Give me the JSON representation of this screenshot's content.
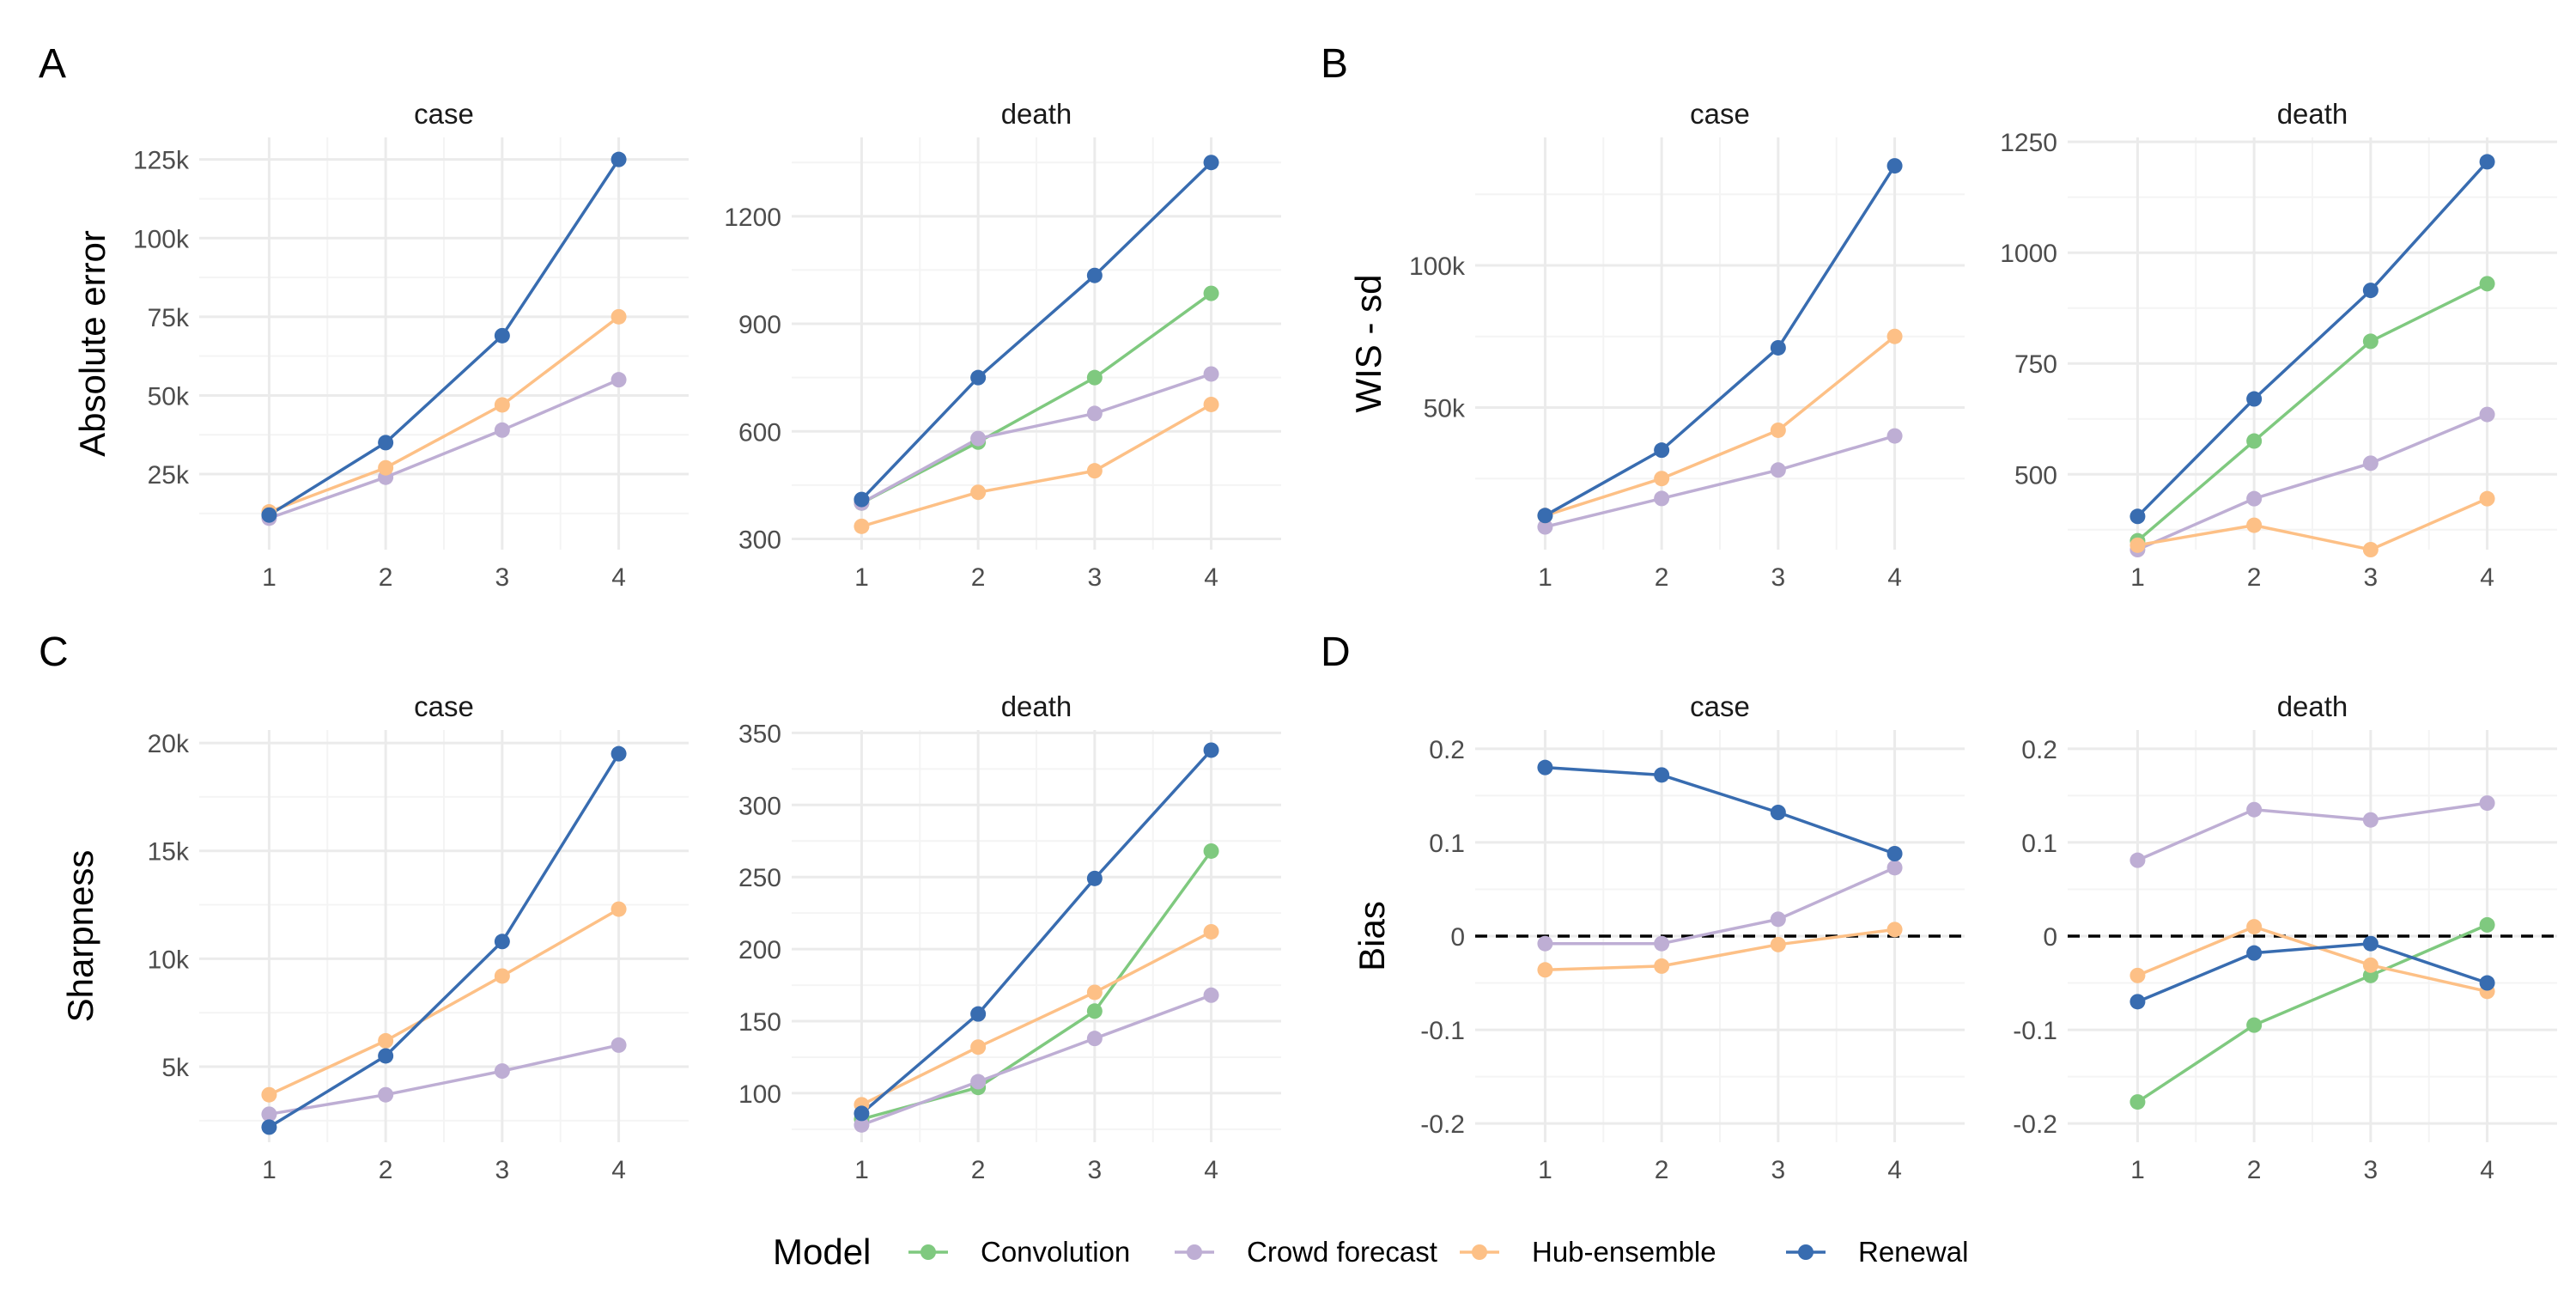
{
  "colors": {
    "Convolution": "#7fc97f",
    "Crowd forecast": "#beaed4",
    "Hub-ensemble": "#fdc086",
    "Renewal": "#386cb0",
    "grid_major": "#ebebeb",
    "grid_minor": "#f4f4f4",
    "zero_line": "#000000"
  },
  "legend": {
    "title": "Model",
    "items": [
      "Convolution",
      "Crowd forecast",
      "Hub-ensemble",
      "Renewal"
    ]
  },
  "panels": [
    {
      "label": "A",
      "ylabel": "Absolute error"
    },
    {
      "label": "B",
      "ylabel": "WIS - sd"
    },
    {
      "label": "C",
      "ylabel": "Sharpness"
    },
    {
      "label": "D",
      "ylabel": "Bias"
    }
  ],
  "chart_data": [
    {
      "type": "line",
      "panel": "A",
      "facet": "case",
      "ylabel": "Absolute error",
      "x": [
        1,
        2,
        3,
        4
      ],
      "xlim": [
        0.4,
        4.6
      ],
      "ylim": [
        1000,
        132000
      ],
      "yticks": [
        25000,
        50000,
        75000,
        100000,
        125000
      ],
      "yticklabels": [
        "25k",
        "50k",
        "75k",
        "100k",
        "125k"
      ],
      "xticklabels": [
        "1",
        "2",
        "3",
        "4"
      ],
      "series": [
        {
          "name": "Crowd forecast",
          "values": [
            11000,
            24000,
            39000,
            55000
          ]
        },
        {
          "name": "Hub-ensemble",
          "values": [
            13000,
            27000,
            47000,
            75000
          ]
        },
        {
          "name": "Renewal",
          "values": [
            12000,
            35000,
            69000,
            125000
          ]
        }
      ]
    },
    {
      "type": "line",
      "panel": "A",
      "facet": "death",
      "ylabel": "",
      "x": [
        1,
        2,
        3,
        4
      ],
      "xlim": [
        0.4,
        4.6
      ],
      "ylim": [
        270,
        1420
      ],
      "yticks": [
        300,
        600,
        900,
        1200
      ],
      "yticklabels": [
        "300",
        "600",
        "900",
        "1200"
      ],
      "xticklabels": [
        "1",
        "2",
        "3",
        "4"
      ],
      "series": [
        {
          "name": "Convolution",
          "values": [
            400,
            570,
            750,
            985
          ]
        },
        {
          "name": "Crowd forecast",
          "values": [
            400,
            580,
            650,
            760
          ]
        },
        {
          "name": "Hub-ensemble",
          "values": [
            335,
            430,
            490,
            675
          ]
        },
        {
          "name": "Renewal",
          "values": [
            410,
            750,
            1035,
            1350
          ]
        }
      ]
    },
    {
      "type": "line",
      "panel": "B",
      "facet": "case",
      "ylabel": "WIS - sd",
      "x": [
        1,
        2,
        3,
        4
      ],
      "xlim": [
        0.4,
        4.6
      ],
      "ylim": [
        0,
        145000
      ],
      "yticks": [
        50000,
        100000
      ],
      "yticklabels": [
        "50k",
        "100k"
      ],
      "xticklabels": [
        "1",
        "2",
        "3",
        "4"
      ],
      "series": [
        {
          "name": "Crowd forecast",
          "values": [
            8000,
            18000,
            28000,
            40000
          ]
        },
        {
          "name": "Hub-ensemble",
          "values": [
            12000,
            25000,
            42000,
            75000
          ]
        },
        {
          "name": "Renewal",
          "values": [
            12000,
            35000,
            71000,
            135000
          ]
        }
      ]
    },
    {
      "type": "line",
      "panel": "B",
      "facet": "death",
      "ylabel": "",
      "x": [
        1,
        2,
        3,
        4
      ],
      "xlim": [
        0.4,
        4.6
      ],
      "ylim": [
        330,
        1260
      ],
      "yticks": [
        500,
        750,
        1000,
        1250
      ],
      "yticklabels": [
        "500",
        "750",
        "1000",
        "1250"
      ],
      "xticklabels": [
        "1",
        "2",
        "3",
        "4"
      ],
      "series": [
        {
          "name": "Convolution",
          "values": [
            350,
            575,
            800,
            930
          ]
        },
        {
          "name": "Crowd forecast",
          "values": [
            330,
            445,
            525,
            635
          ]
        },
        {
          "name": "Hub-ensemble",
          "values": [
            340,
            385,
            330,
            445
          ]
        },
        {
          "name": "Renewal",
          "values": [
            405,
            670,
            915,
            1205
          ]
        }
      ]
    },
    {
      "type": "line",
      "panel": "C",
      "facet": "case",
      "ylabel": "Sharpness",
      "x": [
        1,
        2,
        3,
        4
      ],
      "xlim": [
        0.4,
        4.6
      ],
      "ylim": [
        1500,
        20600
      ],
      "yticks": [
        5000,
        10000,
        15000,
        20000
      ],
      "yticklabels": [
        "5k",
        "10k",
        "15k",
        "20k"
      ],
      "xticklabels": [
        "1",
        "2",
        "3",
        "4"
      ],
      "series": [
        {
          "name": "Crowd forecast",
          "values": [
            2800,
            3700,
            4800,
            6000
          ]
        },
        {
          "name": "Hub-ensemble",
          "values": [
            3700,
            6200,
            9200,
            12300
          ]
        },
        {
          "name": "Renewal",
          "values": [
            2200,
            5500,
            10800,
            19500
          ]
        }
      ]
    },
    {
      "type": "line",
      "panel": "C",
      "facet": "death",
      "ylabel": "",
      "x": [
        1,
        2,
        3,
        4
      ],
      "xlim": [
        0.4,
        4.6
      ],
      "ylim": [
        66,
        352
      ],
      "yticks": [
        100,
        150,
        200,
        250,
        300,
        350
      ],
      "yticklabels": [
        "100",
        "150",
        "200",
        "250",
        "300",
        "350"
      ],
      "xticklabels": [
        "1",
        "2",
        "3",
        "4"
      ],
      "series": [
        {
          "name": "Convolution",
          "values": [
            82,
            104,
            157,
            268
          ]
        },
        {
          "name": "Crowd forecast",
          "values": [
            78,
            108,
            138,
            168
          ]
        },
        {
          "name": "Hub-ensemble",
          "values": [
            92,
            132,
            170,
            212
          ]
        },
        {
          "name": "Renewal",
          "values": [
            86,
            155,
            249,
            338
          ]
        }
      ]
    },
    {
      "type": "line",
      "panel": "D",
      "facet": "case",
      "ylabel": "Bias",
      "hline": 0,
      "x": [
        1,
        2,
        3,
        4
      ],
      "xlim": [
        0.4,
        4.6
      ],
      "ylim": [
        -0.22,
        0.22
      ],
      "yticks": [
        -0.2,
        -0.1,
        0,
        0.1,
        0.2
      ],
      "yticklabels": [
        "-0.2",
        "-0.1",
        "0",
        "0.1",
        "0.2"
      ],
      "xticklabels": [
        "1",
        "2",
        "3",
        "4"
      ],
      "series": [
        {
          "name": "Crowd forecast",
          "values": [
            -0.008,
            -0.008,
            0.018,
            0.073
          ]
        },
        {
          "name": "Hub-ensemble",
          "values": [
            -0.036,
            -0.032,
            -0.009,
            0.007
          ]
        },
        {
          "name": "Renewal",
          "values": [
            0.18,
            0.172,
            0.132,
            0.088
          ]
        }
      ]
    },
    {
      "type": "line",
      "panel": "D",
      "facet": "death",
      "ylabel": "",
      "hline": 0,
      "x": [
        1,
        2,
        3,
        4
      ],
      "xlim": [
        0.4,
        4.6
      ],
      "ylim": [
        -0.22,
        0.22
      ],
      "yticks": [
        -0.2,
        -0.1,
        0,
        0.1,
        0.2
      ],
      "yticklabels": [
        "-0.2",
        "-0.1",
        "0",
        "0.1",
        "0.2"
      ],
      "xticklabels": [
        "1",
        "2",
        "3",
        "4"
      ],
      "series": [
        {
          "name": "Convolution",
          "values": [
            -0.177,
            -0.095,
            -0.042,
            0.012
          ]
        },
        {
          "name": "Crowd forecast",
          "values": [
            0.081,
            0.135,
            0.124,
            0.142
          ]
        },
        {
          "name": "Hub-ensemble",
          "values": [
            -0.042,
            0.01,
            -0.031,
            -0.059
          ]
        },
        {
          "name": "Renewal",
          "values": [
            -0.07,
            -0.018,
            -0.008,
            -0.05
          ]
        }
      ]
    }
  ]
}
